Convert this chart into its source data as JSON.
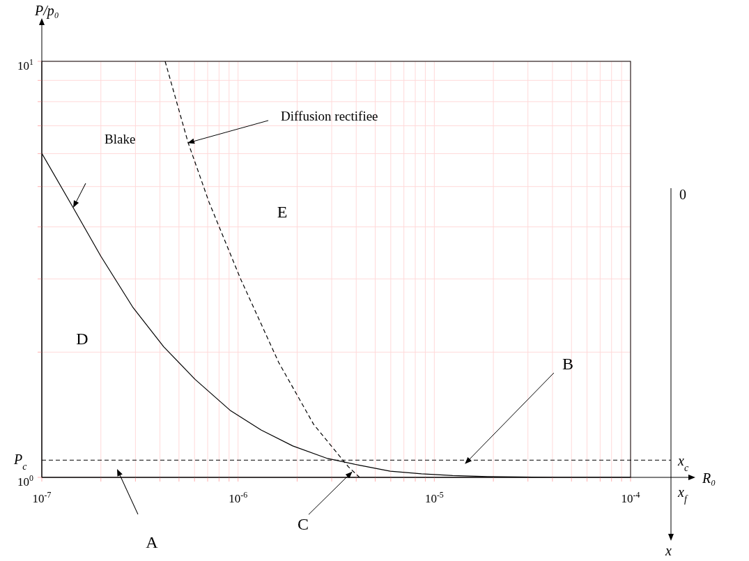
{
  "chart_data": {
    "type": "line",
    "xlabel": "R₀",
    "ylabel": "P/p₀",
    "log": "xy",
    "grid": true,
    "marker": "none",
    "legend": false,
    "xlim": [
      1e-07,
      0.0001
    ],
    "ylim": [
      1,
      10
    ],
    "xticks": [
      {
        "value": 1e-07,
        "label": "10$^{-7}$"
      },
      {
        "value": 2e-07,
        "label": null
      },
      {
        "value": 3e-07,
        "label": null
      },
      {
        "value": 4e-07,
        "label": null
      },
      {
        "value": 5e-07,
        "label": null
      },
      {
        "value": 6e-07,
        "label": null
      },
      {
        "value": 7e-07,
        "label": null
      },
      {
        "value": 8e-07,
        "label": null
      },
      {
        "value": 9e-07,
        "label": null
      },
      {
        "value": 1e-06,
        "label": "10$^{-6}$"
      },
      {
        "value": 2e-06,
        "label": null
      },
      {
        "value": 3e-06,
        "label": null
      },
      {
        "value": 4e-06,
        "label": null
      },
      {
        "value": 5e-06,
        "label": null
      },
      {
        "value": 6e-06,
        "label": null
      },
      {
        "value": 7e-06,
        "label": null
      },
      {
        "value": 8e-06,
        "label": null
      },
      {
        "value": 9e-06,
        "label": null
      },
      {
        "value": 1e-05,
        "label": "10$^{-5}$"
      },
      {
        "value": 2e-05,
        "label": null
      },
      {
        "value": 3e-05,
        "label": null
      },
      {
        "value": 4e-05,
        "label": null
      },
      {
        "value": 5e-05,
        "label": null
      },
      {
        "value": 6e-05,
        "label": null
      },
      {
        "value": 7e-05,
        "label": null
      },
      {
        "value": 8e-05,
        "label": null
      },
      {
        "value": 9e-05,
        "label": null
      },
      {
        "value": 0.0001,
        "label": "10$^{-4}$"
      }
    ],
    "yticks": [
      {
        "value": 1,
        "label": "10$^{0}$"
      },
      {
        "value": 2,
        "label": null
      },
      {
        "value": 3,
        "label": null
      },
      {
        "value": 4,
        "label": null
      },
      {
        "value": 5,
        "label": null
      },
      {
        "value": 6,
        "label": null
      },
      {
        "value": 7,
        "label": null
      },
      {
        "value": 8,
        "label": null
      },
      {
        "value": 9,
        "label": null
      },
      {
        "value": 10,
        "label": "10$^{1}$"
      }
    ],
    "series": [
      {
        "color": "#000000",
        "line_style": "solid",
        "x": [
          1e-07,
          1.445e-07,
          2e-07,
          2.9e-07,
          4.18e-07,
          6.04e-07,
          9.1e-07,
          1.31e-06,
          1.9e-06,
          2.86e-06,
          4.12e-06,
          5.96e-06,
          8.6e-06,
          1.24e-05,
          1.87e-05,
          4.24e-05,
          0.0001
        ],
        "values": [
          6.01,
          4.45,
          3.4,
          2.57,
          2.06,
          1.72,
          1.45,
          1.3,
          1.19,
          1.11,
          1.07,
          1.035,
          1.02,
          1.01,
          1.004,
          1.0,
          1.0
        ]
      },
      {
        "color": "#000000",
        "line_style": "dashed",
        "x": [
          4.25e-07,
          5.57e-07,
          7.11e-07,
          1.03e-06,
          1.61e-06,
          2.43e-06,
          3.65e-06,
          4.16e-06
        ],
        "values": [
          10,
          6.37,
          4.59,
          3.0,
          1.89,
          1.34,
          1.06,
          1.0
        ]
      }
    ],
    "ref_lines": [
      {
        "axis": "y",
        "value": 1.1,
        "label": "P$_{c}$",
        "line_style": "dashed",
        "color": "#000000"
      }
    ],
    "annotations": [
      {
        "text": "Diffusion rectifiee",
        "x": 5.57e-07,
        "y": 6.37
      },
      {
        "text": "B",
        "x": 1.44e-05,
        "y": 1.08
      },
      {
        "text": "C",
        "x": 3.8e-06,
        "y": 1.03
      },
      "Blake",
      "A",
      "D",
      "E",
      "0",
      "x$_{c}$",
      "x$_{f}$",
      "x"
    ]
  }
}
